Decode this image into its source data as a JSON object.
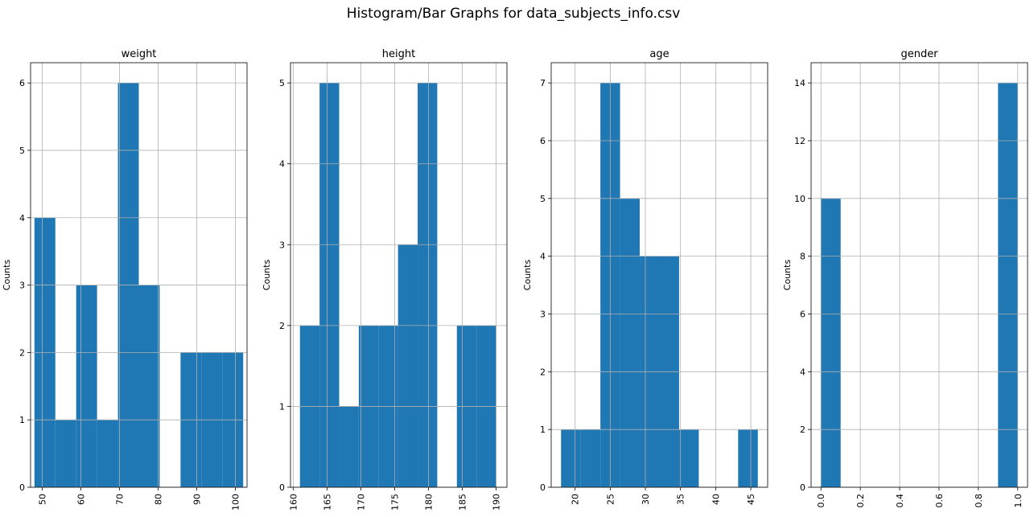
{
  "figure_title": "Histogram/Bar Graphs for data_subjects_info.csv",
  "colors": {
    "bar": "#1f77b4",
    "grid": "#b0b0b0",
    "axis": "#000000"
  },
  "chart_data": [
    {
      "type": "bar",
      "title": "weight",
      "xlabel": "",
      "ylabel": "Counts",
      "grid": true,
      "xlim": [
        47,
        103
      ],
      "ylim": [
        0,
        6.3
      ],
      "xticks": [
        50,
        60,
        70,
        80,
        90,
        100
      ],
      "yticks": [
        0,
        1,
        2,
        3,
        4,
        5,
        6
      ],
      "xtick_rotation": 90,
      "bins": [
        {
          "x0": 48.0,
          "x1": 53.4,
          "count": 4
        },
        {
          "x0": 53.4,
          "x1": 58.8,
          "count": 1
        },
        {
          "x0": 58.8,
          "x1": 64.2,
          "count": 3
        },
        {
          "x0": 64.2,
          "x1": 69.6,
          "count": 1
        },
        {
          "x0": 69.6,
          "x1": 75.0,
          "count": 6
        },
        {
          "x0": 75.0,
          "x1": 80.4,
          "count": 3
        },
        {
          "x0": 80.4,
          "x1": 85.8,
          "count": 0
        },
        {
          "x0": 85.8,
          "x1": 91.2,
          "count": 2
        },
        {
          "x0": 91.2,
          "x1": 96.6,
          "count": 2
        },
        {
          "x0": 96.6,
          "x1": 102.0,
          "count": 2
        }
      ]
    },
    {
      "type": "bar",
      "title": "height",
      "xlabel": "",
      "ylabel": "Counts",
      "grid": true,
      "xlim": [
        159.6,
        191.6
      ],
      "ylim": [
        0,
        5.25
      ],
      "xticks": [
        160,
        165,
        170,
        175,
        180,
        185,
        190
      ],
      "yticks": [
        0,
        1,
        2,
        3,
        4,
        5
      ],
      "xtick_rotation": 90,
      "bins": [
        {
          "x0": 161.0,
          "x1": 163.9,
          "count": 2
        },
        {
          "x0": 163.9,
          "x1": 166.8,
          "count": 5
        },
        {
          "x0": 166.8,
          "x1": 169.7,
          "count": 1
        },
        {
          "x0": 169.7,
          "x1": 172.6,
          "count": 2
        },
        {
          "x0": 172.6,
          "x1": 175.5,
          "count": 2
        },
        {
          "x0": 175.5,
          "x1": 178.4,
          "count": 3
        },
        {
          "x0": 178.4,
          "x1": 181.3,
          "count": 5
        },
        {
          "x0": 181.3,
          "x1": 184.2,
          "count": 0
        },
        {
          "x0": 184.2,
          "x1": 187.1,
          "count": 2
        },
        {
          "x0": 187.1,
          "x1": 190.0,
          "count": 2
        }
      ]
    },
    {
      "type": "bar",
      "title": "age",
      "xlabel": "",
      "ylabel": "Counts",
      "grid": true,
      "xlim": [
        16.6,
        47.4
      ],
      "ylim": [
        0,
        7.35
      ],
      "xticks": [
        20,
        25,
        30,
        35,
        40,
        45
      ],
      "yticks": [
        0,
        1,
        2,
        3,
        4,
        5,
        6,
        7
      ],
      "xtick_rotation": 90,
      "bins": [
        {
          "x0": 18.0,
          "x1": 20.8,
          "count": 1
        },
        {
          "x0": 20.8,
          "x1": 23.6,
          "count": 1
        },
        {
          "x0": 23.6,
          "x1": 26.4,
          "count": 7
        },
        {
          "x0": 26.4,
          "x1": 29.2,
          "count": 5
        },
        {
          "x0": 29.2,
          "x1": 32.0,
          "count": 4
        },
        {
          "x0": 32.0,
          "x1": 34.8,
          "count": 4
        },
        {
          "x0": 34.8,
          "x1": 37.6,
          "count": 1
        },
        {
          "x0": 37.6,
          "x1": 40.4,
          "count": 0
        },
        {
          "x0": 40.4,
          "x1": 43.2,
          "count": 0
        },
        {
          "x0": 43.2,
          "x1": 46.0,
          "count": 1
        }
      ]
    },
    {
      "type": "bar",
      "title": "gender",
      "xlabel": "",
      "ylabel": "Counts",
      "grid": true,
      "xlim": [
        -0.05,
        1.05
      ],
      "ylim": [
        0,
        14.7
      ],
      "xticks": [
        0.0,
        0.2,
        0.4,
        0.6,
        0.8,
        1.0
      ],
      "xtick_labels": [
        "0.0",
        "0.2",
        "0.4",
        "0.6",
        "0.8",
        "1.0"
      ],
      "yticks": [
        0,
        2,
        4,
        6,
        8,
        10,
        12,
        14
      ],
      "xtick_rotation": 90,
      "bins": [
        {
          "x0": 0.0,
          "x1": 0.1,
          "count": 10
        },
        {
          "x0": 0.1,
          "x1": 0.2,
          "count": 0
        },
        {
          "x0": 0.2,
          "x1": 0.3,
          "count": 0
        },
        {
          "x0": 0.3,
          "x1": 0.4,
          "count": 0
        },
        {
          "x0": 0.4,
          "x1": 0.5,
          "count": 0
        },
        {
          "x0": 0.5,
          "x1": 0.6,
          "count": 0
        },
        {
          "x0": 0.6,
          "x1": 0.7,
          "count": 0
        },
        {
          "x0": 0.7,
          "x1": 0.8,
          "count": 0
        },
        {
          "x0": 0.8,
          "x1": 0.9,
          "count": 0
        },
        {
          "x0": 0.9,
          "x1": 1.0,
          "count": 14
        }
      ]
    }
  ]
}
